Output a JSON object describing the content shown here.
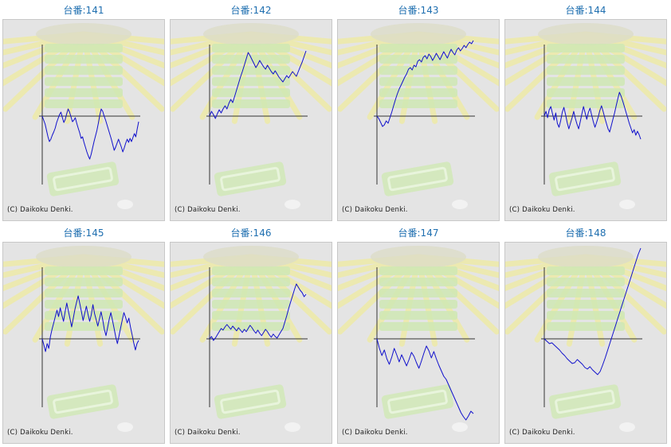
{
  "credit_text": "(C) Daikoku Denki.",
  "colors": {
    "line": "#1010cc",
    "title": "#1f6fb0",
    "panel_bg": "#e4e4e4",
    "axis": "#333333"
  },
  "chart_data": [
    {
      "type": "line",
      "title": "台番:141",
      "y": [
        0.0,
        -0.5,
        -1.0,
        -1.8,
        -2.6,
        -3.2,
        -2.9,
        -2.4,
        -2.0,
        -1.5,
        -0.8,
        -0.3,
        0.2,
        0.5,
        -0.2,
        -0.8,
        -0.4,
        0.3,
        0.9,
        0.5,
        -0.1,
        -0.7,
        -0.5,
        -0.2,
        -0.9,
        -1.5,
        -2.1,
        -2.8,
        -2.6,
        -3.3,
        -3.9,
        -4.5,
        -5.0,
        -5.4,
        -4.8,
        -4.0,
        -3.2,
        -2.5,
        -1.8,
        -0.9,
        0.1,
        0.9,
        0.6,
        0.0,
        -0.5,
        -1.1,
        -1.7,
        -2.3,
        -2.9,
        -3.6,
        -4.3,
        -3.9,
        -3.4,
        -2.9,
        -3.4,
        -3.9,
        -4.5,
        -4.0,
        -3.4,
        -2.9,
        -3.3,
        -2.8,
        -3.2,
        -2.7,
        -2.2,
        -2.6,
        -1.6,
        -0.7
      ]
    },
    {
      "type": "line",
      "title": "台番:142",
      "y": [
        0.0,
        0.6,
        0.2,
        -0.3,
        0.3,
        0.8,
        0.4,
        0.9,
        1.3,
        0.9,
        1.6,
        2.1,
        1.7,
        2.5,
        3.3,
        4.1,
        4.9,
        5.6,
        6.4,
        7.2,
        8.0,
        7.6,
        7.1,
        6.6,
        6.1,
        6.5,
        7.0,
        6.6,
        6.2,
        5.9,
        6.4,
        6.0,
        5.6,
        5.3,
        5.7,
        5.3,
        4.9,
        4.6,
        4.3,
        4.7,
        5.1,
        4.8,
        5.2,
        5.6,
        5.3,
        5.0,
        5.6,
        6.2,
        6.8,
        7.5,
        8.2
      ]
    },
    {
      "type": "line",
      "title": "台番:143",
      "y": [
        0.0,
        -0.3,
        -0.8,
        -1.3,
        -1.1,
        -0.6,
        -0.9,
        -0.2,
        0.5,
        1.3,
        2.1,
        2.8,
        3.4,
        3.9,
        4.4,
        4.9,
        5.3,
        5.9,
        6.1,
        5.8,
        6.4,
        6.2,
        6.9,
        7.1,
        6.8,
        7.4,
        7.6,
        7.2,
        7.8,
        7.5,
        7.0,
        7.4,
        7.9,
        7.5,
        7.1,
        7.6,
        8.1,
        7.7,
        7.3,
        7.9,
        8.4,
        8.0,
        7.7,
        8.3,
        8.6,
        8.2,
        8.5,
        8.9,
        8.6,
        9.0,
        9.3,
        9.1,
        9.5
      ]
    },
    {
      "type": "line",
      "title": "台番:144",
      "y": [
        0.0,
        0.6,
        -0.2,
        0.8,
        1.2,
        0.3,
        -0.5,
        0.4,
        -0.9,
        -1.4,
        -0.6,
        0.5,
        1.1,
        0.2,
        -0.8,
        -1.6,
        -0.9,
        -0.2,
        0.6,
        -0.3,
        -1.0,
        -1.6,
        -0.7,
        0.3,
        1.2,
        0.4,
        -0.4,
        0.5,
        1.0,
        0.1,
        -0.7,
        -1.4,
        -0.8,
        -0.1,
        0.7,
        1.3,
        0.6,
        -0.2,
        -0.9,
        -1.6,
        -2.0,
        -1.2,
        -0.4,
        0.4,
        1.3,
        2.2,
        3.0,
        2.5,
        1.9,
        1.2,
        0.5,
        -0.2,
        -0.9,
        -1.5,
        -2.1,
        -1.7,
        -2.4,
        -1.9,
        -2.3,
        -2.9
      ]
    },
    {
      "type": "line",
      "title": "台番:145",
      "y": [
        0.0,
        -0.8,
        -1.6,
        -0.6,
        -1.2,
        0.3,
        1.2,
        2.0,
        2.8,
        3.6,
        2.8,
        3.9,
        3.0,
        2.2,
        3.4,
        4.5,
        3.5,
        2.5,
        1.5,
        2.6,
        3.7,
        4.6,
        5.4,
        4.4,
        3.4,
        2.3,
        3.2,
        4.1,
        3.1,
        2.2,
        3.0,
        4.3,
        3.2,
        2.4,
        1.6,
        2.5,
        3.4,
        2.4,
        1.2,
        0.4,
        1.4,
        2.5,
        3.3,
        2.3,
        1.3,
        0.2,
        -0.6,
        0.4,
        1.4,
        2.4,
        3.3,
        2.7,
        2.0,
        2.6,
        1.5,
        0.5,
        -0.5,
        -1.4,
        -0.6,
        -0.2
      ]
    },
    {
      "type": "line",
      "title": "台番:146",
      "y": [
        0.0,
        0.3,
        -0.2,
        0.1,
        0.5,
        0.9,
        1.3,
        1.1,
        1.5,
        1.8,
        1.5,
        1.2,
        1.6,
        1.3,
        1.0,
        1.4,
        1.1,
        0.8,
        1.2,
        0.9,
        1.3,
        1.7,
        1.4,
        1.0,
        0.7,
        1.1,
        0.7,
        0.4,
        0.8,
        1.2,
        0.9,
        0.5,
        0.2,
        0.6,
        0.3,
        0.1,
        0.5,
        0.9,
        1.3,
        2.1,
        2.9,
        3.8,
        4.6,
        5.4,
        6.2,
        6.9,
        6.5,
        6.1,
        5.8,
        5.3,
        5.6
      ]
    },
    {
      "type": "line",
      "title": "台番:147",
      "y": [
        0.0,
        -1.2,
        -2.1,
        -1.4,
        -2.5,
        -3.2,
        -2.3,
        -1.2,
        -2.0,
        -2.9,
        -2.0,
        -2.7,
        -3.4,
        -2.6,
        -1.7,
        -2.2,
        -3.0,
        -3.7,
        -2.8,
        -1.8,
        -0.9,
        -1.5,
        -2.4,
        -1.6,
        -2.5,
        -3.3,
        -4.0,
        -4.7,
        -5.1,
        -5.8,
        -6.5,
        -7.2,
        -7.9,
        -8.6,
        -9.3,
        -9.8,
        -10.2,
        -9.7,
        -9.1,
        -9.4
      ]
    },
    {
      "type": "line",
      "title": "台番:148",
      "y": [
        0.0,
        -0.3,
        -0.6,
        -0.5,
        -0.8,
        -1.1,
        -1.4,
        -1.8,
        -2.1,
        -2.5,
        -2.8,
        -3.1,
        -3.0,
        -2.6,
        -2.9,
        -3.2,
        -3.6,
        -3.8,
        -3.5,
        -3.9,
        -4.2,
        -4.5,
        -4.1,
        -3.3,
        -2.4,
        -1.4,
        -0.4,
        0.6,
        1.6,
        2.6,
        3.6,
        4.6,
        5.6,
        6.6,
        7.6,
        8.6,
        9.6,
        10.6,
        11.4
      ]
    }
  ]
}
